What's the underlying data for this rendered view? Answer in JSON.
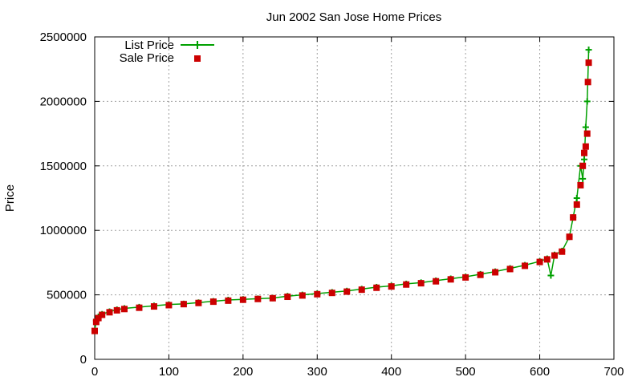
{
  "chart_data": {
    "type": "line",
    "title": "Jun 2002 San Jose Home Prices",
    "xlabel": "",
    "ylabel": "Price",
    "xlim": [
      0,
      700
    ],
    "ylim": [
      0,
      2500000
    ],
    "x_ticks": [
      0,
      100,
      200,
      300,
      400,
      500,
      600,
      700
    ],
    "y_ticks": [
      0,
      500000,
      1000000,
      1500000,
      2000000,
      2500000
    ],
    "x_tick_labels": [
      "0",
      "100",
      "200",
      "300",
      "400",
      "500",
      "600",
      "700"
    ],
    "y_tick_labels": [
      "0",
      "500000",
      "1000000",
      "1500000",
      "2000000",
      "2500000"
    ],
    "grid": true,
    "legend_position": "top-left",
    "series": [
      {
        "name": "List Price",
        "style": "line-with-plus-markers",
        "color": "#00a000",
        "x": [
          0,
          2,
          5,
          10,
          20,
          30,
          40,
          60,
          80,
          100,
          120,
          140,
          160,
          180,
          200,
          220,
          240,
          260,
          280,
          300,
          320,
          340,
          360,
          380,
          400,
          420,
          440,
          460,
          480,
          500,
          520,
          540,
          560,
          580,
          600,
          610,
          615,
          620,
          630,
          640,
          645,
          650,
          655,
          658,
          660,
          662,
          664,
          666
        ],
        "y": [
          220000,
          300000,
          330000,
          350000,
          370000,
          385000,
          395000,
          405000,
          415000,
          425000,
          430000,
          440000,
          450000,
          460000,
          465000,
          470000,
          475000,
          490000,
          500000,
          510000,
          520000,
          530000,
          545000,
          560000,
          570000,
          585000,
          595000,
          610000,
          625000,
          640000,
          660000,
          680000,
          705000,
          730000,
          760000,
          780000,
          650000,
          810000,
          840000,
          950000,
          1100000,
          1250000,
          1500000,
          1400000,
          1550000,
          1800000,
          2000000,
          2400000
        ]
      },
      {
        "name": "Sale Price",
        "style": "square-markers",
        "color": "#cc0000",
        "x": [
          0,
          2,
          5,
          10,
          20,
          30,
          40,
          60,
          80,
          100,
          120,
          140,
          160,
          180,
          200,
          220,
          240,
          260,
          280,
          300,
          320,
          340,
          360,
          380,
          400,
          420,
          440,
          460,
          480,
          500,
          520,
          540,
          560,
          580,
          600,
          610,
          620,
          630,
          640,
          645,
          650,
          655,
          658,
          660,
          662,
          664,
          665,
          666
        ],
        "y": [
          220000,
          290000,
          320000,
          345000,
          365000,
          380000,
          390000,
          400000,
          410000,
          420000,
          428000,
          437000,
          447000,
          455000,
          462000,
          468000,
          474000,
          485000,
          495000,
          505000,
          515000,
          525000,
          540000,
          555000,
          565000,
          580000,
          590000,
          605000,
          620000,
          635000,
          655000,
          675000,
          700000,
          725000,
          755000,
          775000,
          805000,
          835000,
          950000,
          1100000,
          1200000,
          1350000,
          1500000,
          1600000,
          1650000,
          1750000,
          2150000,
          2300000
        ]
      }
    ]
  }
}
